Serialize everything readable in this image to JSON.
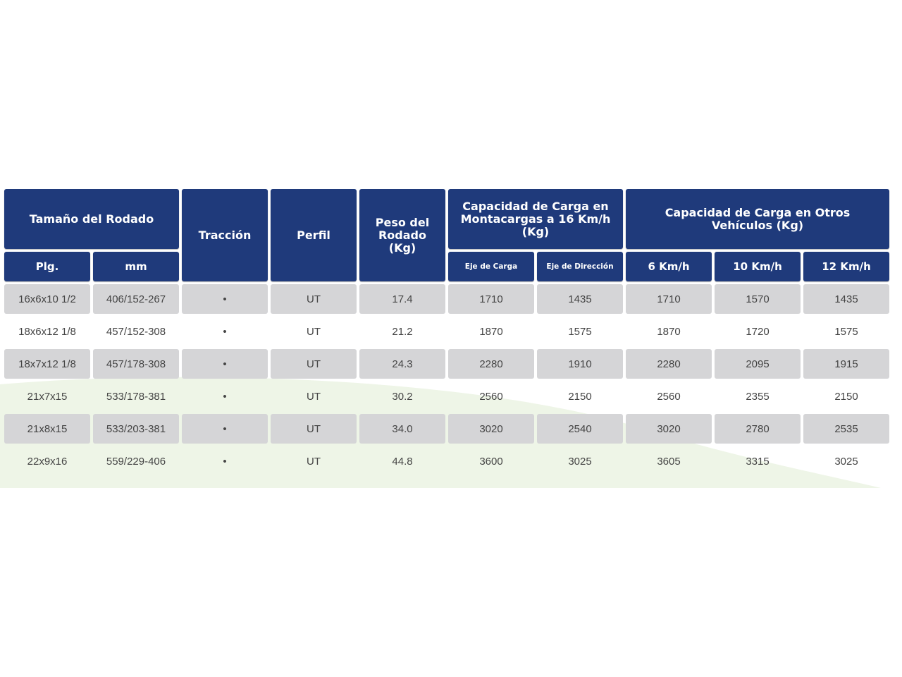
{
  "colors": {
    "header_bg": "#1f3a7b",
    "row_shaded_bg": "#d5d5d7",
    "text": "#444444",
    "wave": "#eef5e7"
  },
  "headers": {
    "size": "Tamaño del Rodado",
    "size_in": "Plg.",
    "size_mm": "mm",
    "traction": "Tracción",
    "profile": "Perfil",
    "weight": "Peso del Rodado (Kg)",
    "forklift_capacity": "Capacidad de Carga en Montacargas a 16 Km/h (Kg)",
    "load_axle": "Eje de Carga",
    "steer_axle": "Eje de Dirección",
    "other_capacity": "Capacidad de Carga en Otros Vehículos (Kg)",
    "speed_6": "6 Km/h",
    "speed_10": "10 Km/h",
    "speed_12": "12 Km/h"
  },
  "rows": [
    {
      "plg": "16x6x10 1/2",
      "mm": "406/152-267",
      "traccion": "•",
      "perfil": "UT",
      "peso": "17.4",
      "eje_carga": "1710",
      "eje_direccion": "1435",
      "kmh6": "1710",
      "kmh10": "1570",
      "kmh12": "1435"
    },
    {
      "plg": "18x6x12 1/8",
      "mm": "457/152-308",
      "traccion": "•",
      "perfil": "UT",
      "peso": "21.2",
      "eje_carga": "1870",
      "eje_direccion": "1575",
      "kmh6": "1870",
      "kmh10": "1720",
      "kmh12": "1575"
    },
    {
      "plg": "18x7x12 1/8",
      "mm": "457/178-308",
      "traccion": "•",
      "perfil": "UT",
      "peso": "24.3",
      "eje_carga": "2280",
      "eje_direccion": "1910",
      "kmh6": "2280",
      "kmh10": "2095",
      "kmh12": "1915"
    },
    {
      "plg": "21x7x15",
      "mm": "533/178-381",
      "traccion": "•",
      "perfil": "UT",
      "peso": "30.2",
      "eje_carga": "2560",
      "eje_direccion": "2150",
      "kmh6": "2560",
      "kmh10": "2355",
      "kmh12": "2150"
    },
    {
      "plg": "21x8x15",
      "mm": "533/203-381",
      "traccion": "•",
      "perfil": "UT",
      "peso": "34.0",
      "eje_carga": "3020",
      "eje_direccion": "2540",
      "kmh6": "3020",
      "kmh10": "2780",
      "kmh12": "2535"
    },
    {
      "plg": "22x9x16",
      "mm": "559/229-406",
      "traccion": "•",
      "perfil": "UT",
      "peso": "44.8",
      "eje_carga": "3600",
      "eje_direccion": "3025",
      "kmh6": "3605",
      "kmh10": "3315",
      "kmh12": "3025"
    }
  ]
}
